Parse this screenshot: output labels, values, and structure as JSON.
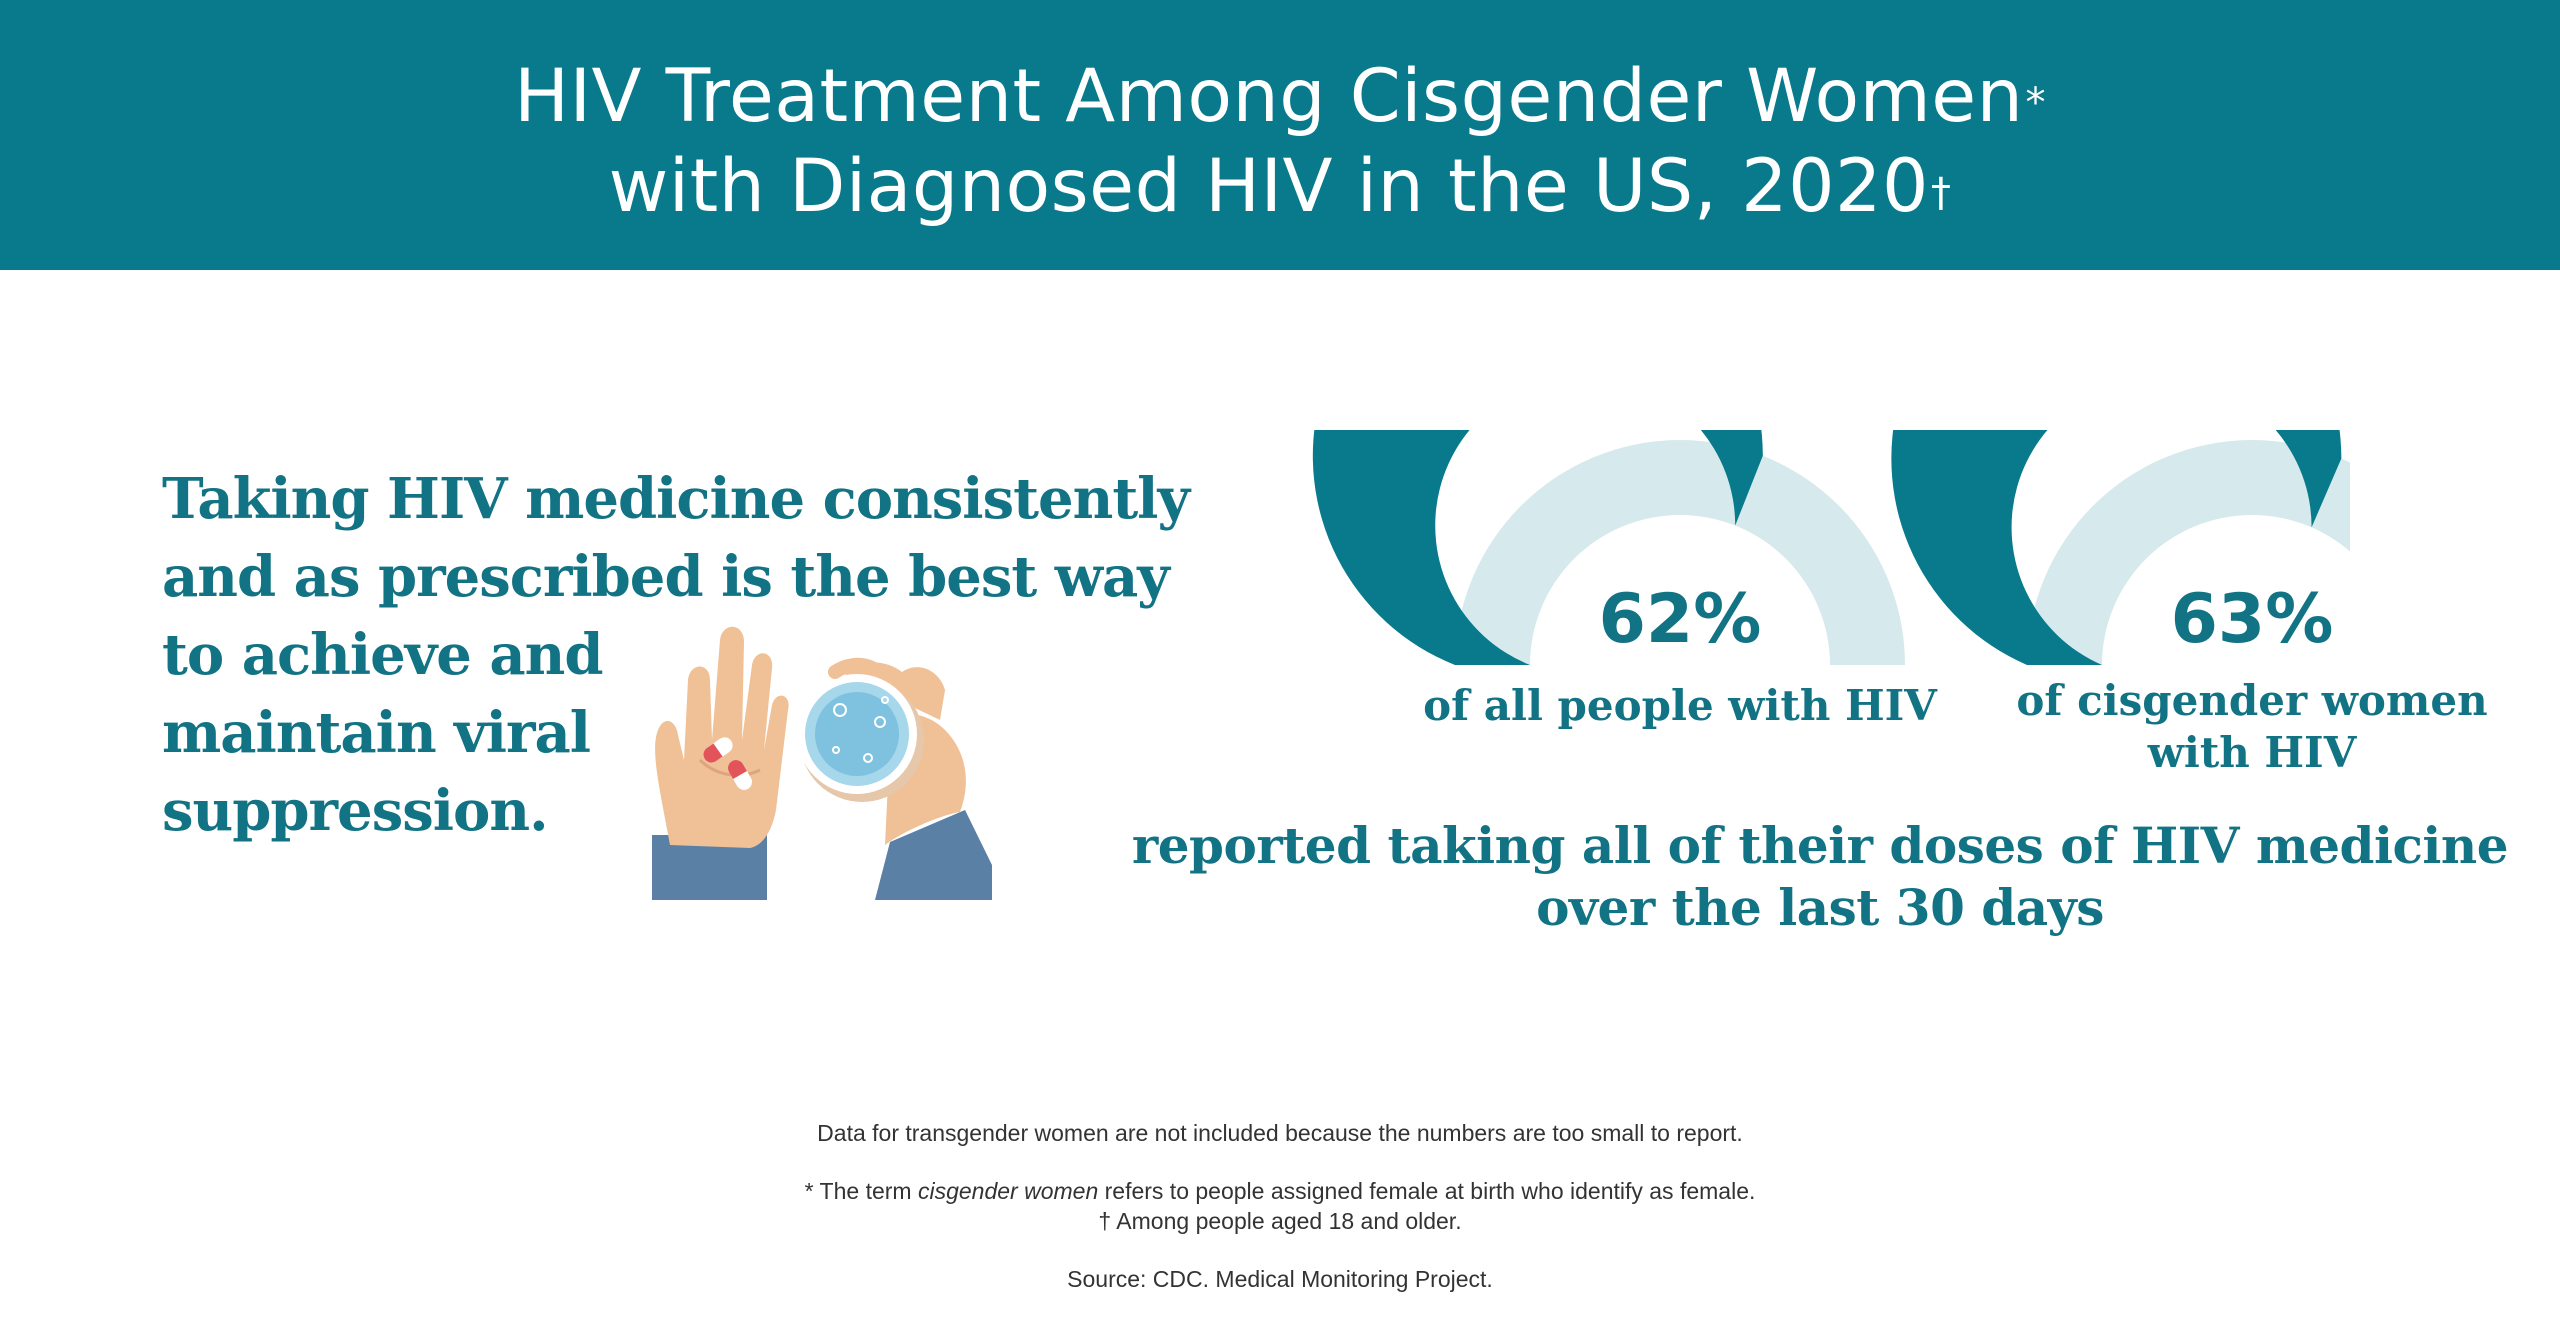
{
  "header": {
    "title_line1": "HIV Treatment Among Cisgender Women",
    "title_line1_mark": "*",
    "title_line2": "with Diagnosed HIV in the US, 2020",
    "title_line2_mark": "†"
  },
  "message": {
    "lines": [
      "Taking HIV medicine consistently",
      "and as prescribed is the best way",
      "to achieve and",
      "maintain viral",
      "suppression."
    ]
  },
  "colors": {
    "header_bg": "#087a8b",
    "text_teal": "#127384",
    "gauge_fill": "#087a8b",
    "gauge_track": "#d6e9ec"
  },
  "chart_data": [
    {
      "type": "pie",
      "title": "",
      "value_percent": 62,
      "value_label": "62%",
      "label_lines": [
        "of all people with HIV"
      ]
    },
    {
      "type": "pie",
      "title": "",
      "value_percent": 63,
      "value_label": "63%",
      "label_lines": [
        "of cisgender women",
        "with HIV"
      ]
    }
  ],
  "caption": {
    "line1": "reported taking all of their doses of HIV medicine",
    "line2": "over the last 30 days"
  },
  "notes": {
    "line1": "Data for transgender women are not included because the numbers are too small to report.",
    "star_prefix": "* The term ",
    "star_term": "cisgender women",
    "star_suffix": " refers to people assigned female at birth who identify as female.",
    "dagger": "† Among people aged 18 and older.",
    "source": "Source: CDC. Medical Monitoring Project."
  }
}
